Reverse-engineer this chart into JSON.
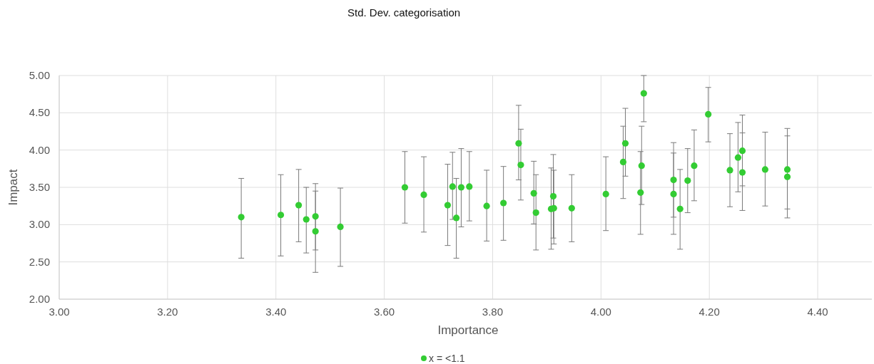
{
  "chart_data": {
    "type": "scatter",
    "title": "Std. Dev. categorisation",
    "xlabel": "Importance",
    "ylabel": "Impact",
    "xlim": [
      3,
      4.5
    ],
    "xticks": [
      {
        "value": 3,
        "label": "3.00"
      },
      {
        "value": 3.2,
        "label": "3.20"
      },
      {
        "value": 3.4,
        "label": "3.40"
      },
      {
        "value": 3.6,
        "label": "3.60"
      },
      {
        "value": 3.8,
        "label": "3.80"
      },
      {
        "value": 4,
        "label": "4.00"
      },
      {
        "value": 4.2,
        "label": "4.20"
      },
      {
        "value": 4.4,
        "label": "4.40"
      }
    ],
    "ylim": [
      2,
      5
    ],
    "yticks": [
      {
        "value": 2,
        "label": "2.00"
      },
      {
        "value": 2.5,
        "label": "2.50"
      },
      {
        "value": 3,
        "label": "3.00"
      },
      {
        "value": 3.5,
        "label": "3.50"
      },
      {
        "value": 4,
        "label": "4.00"
      },
      {
        "value": 4.5,
        "label": "4.50"
      },
      {
        "value": 5,
        "label": "5.00"
      }
    ],
    "grid": true,
    "legend": "bottom",
    "marker": "circle",
    "series": [
      {
        "name": "x = <1.1",
        "color": "#33cc33",
        "x": [
          3.336,
          3.409,
          3.442,
          3.456,
          3.473,
          3.473,
          3.519,
          3.638,
          3.673,
          3.717,
          3.726,
          3.733,
          3.742,
          3.757,
          3.789,
          3.82,
          3.848,
          3.852,
          3.876,
          3.88,
          3.908,
          3.912,
          3.913,
          3.946,
          4.009,
          4.041,
          4.045,
          4.073,
          4.075,
          4.079,
          4.134,
          4.134,
          4.146,
          4.16,
          4.172,
          4.198,
          4.238,
          4.253,
          4.261,
          4.261,
          4.303,
          4.344,
          4.344
        ],
        "values": [
          3.1,
          3.13,
          3.26,
          3.07,
          3.11,
          2.91,
          2.97,
          3.5,
          3.4,
          3.26,
          3.51,
          3.09,
          3.5,
          3.51,
          3.25,
          3.29,
          4.09,
          3.8,
          3.42,
          3.16,
          3.21,
          3.38,
          3.22,
          3.22,
          3.41,
          3.84,
          4.09,
          3.43,
          3.79,
          4.76,
          3.6,
          3.41,
          3.21,
          3.59,
          3.79,
          4.48,
          3.73,
          3.9,
          3.99,
          3.7,
          3.74,
          3.74,
          3.64
        ],
        "errors": [
          [
            2.55,
            3.62
          ],
          [
            2.58,
            3.67
          ],
          [
            2.77,
            3.74
          ],
          [
            2.62,
            3.5
          ],
          [
            2.66,
            3.55
          ],
          [
            2.36,
            3.45
          ],
          [
            2.44,
            3.49
          ],
          [
            3.02,
            3.98
          ],
          [
            2.9,
            3.91
          ],
          [
            2.72,
            3.81
          ],
          [
            3.07,
            3.97
          ],
          [
            2.55,
            3.62
          ],
          [
            2.97,
            4.02
          ],
          [
            3.05,
            3.98
          ],
          [
            2.78,
            3.73
          ],
          [
            2.79,
            3.78
          ],
          [
            3.6,
            4.6
          ],
          [
            3.33,
            4.28
          ],
          [
            3.01,
            3.85
          ],
          [
            2.66,
            3.67
          ],
          [
            2.67,
            3.76
          ],
          [
            2.82,
            3.94
          ],
          [
            2.74,
            3.73
          ],
          [
            2.77,
            3.67
          ],
          [
            2.92,
            3.91
          ],
          [
            3.35,
            4.32
          ],
          [
            3.65,
            4.56
          ],
          [
            2.87,
            3.98
          ],
          [
            3.27,
            4.32
          ],
          [
            4.38,
            5
          ],
          [
            3.1,
            4.1
          ],
          [
            2.87,
            3.96
          ],
          [
            2.67,
            3.74
          ],
          [
            3.16,
            4.02
          ],
          [
            3.32,
            4.27
          ],
          [
            4.11,
            4.84
          ],
          [
            3.24,
            4.22
          ],
          [
            3.44,
            4.37
          ],
          [
            3.52,
            4.47
          ],
          [
            3.19,
            4.23
          ],
          [
            3.25,
            4.24
          ],
          [
            3.21,
            4.29
          ],
          [
            3.09,
            4.19
          ]
        ]
      }
    ]
  }
}
